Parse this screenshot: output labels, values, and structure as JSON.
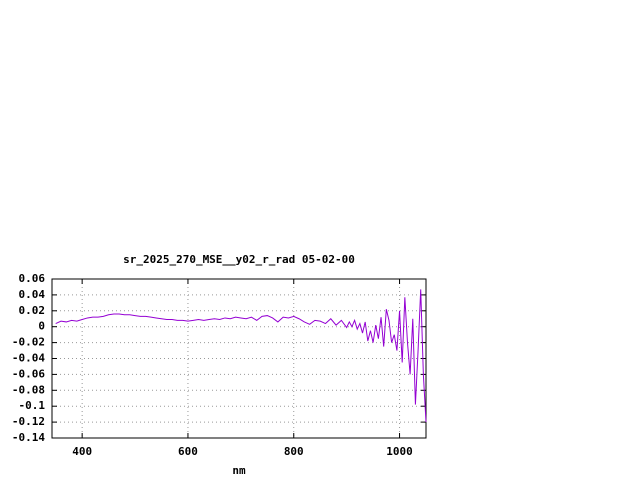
{
  "chart_data": {
    "type": "line",
    "title": "sr_2025_270_MSE__y02_r_rad 05-02-00",
    "x_label": "nm",
    "x": [
      350,
      360,
      370,
      380,
      390,
      400,
      410,
      420,
      430,
      440,
      450,
      460,
      470,
      480,
      490,
      500,
      510,
      520,
      530,
      540,
      550,
      560,
      570,
      580,
      590,
      600,
      610,
      620,
      630,
      640,
      650,
      660,
      670,
      680,
      690,
      700,
      710,
      720,
      730,
      740,
      750,
      760,
      770,
      780,
      790,
      800,
      810,
      820,
      830,
      840,
      850,
      860,
      870,
      880,
      890,
      900,
      905,
      910,
      915,
      920,
      925,
      930,
      935,
      940,
      945,
      950,
      955,
      960,
      965,
      970,
      975,
      980,
      985,
      990,
      995,
      1000,
      1005,
      1010,
      1015,
      1020,
      1025,
      1030,
      1035,
      1040,
      1045,
      1050
    ],
    "series": [
      {
        "color": "#9400d3",
        "values": [
          0.004,
          0.007,
          0.006,
          0.008,
          0.007,
          0.009,
          0.011,
          0.012,
          0.012,
          0.013,
          0.015,
          0.016,
          0.016,
          0.015,
          0.015,
          0.014,
          0.013,
          0.013,
          0.012,
          0.011,
          0.01,
          0.009,
          0.009,
          0.008,
          0.008,
          0.007,
          0.008,
          0.009,
          0.008,
          0.009,
          0.01,
          0.009,
          0.011,
          0.01,
          0.012,
          0.011,
          0.01,
          0.012,
          0.008,
          0.013,
          0.014,
          0.011,
          0.006,
          0.012,
          0.011,
          0.013,
          0.01,
          0.006,
          0.003,
          0.008,
          0.007,
          0.004,
          0.01,
          0.002,
          0.008,
          -0.001,
          0.006,
          0.0,
          0.008,
          -0.003,
          0.004,
          -0.008,
          0.006,
          -0.018,
          -0.005,
          -0.02,
          0.002,
          -0.015,
          0.012,
          -0.025,
          0.022,
          0.008,
          -0.02,
          -0.01,
          -0.03,
          0.02,
          -0.045,
          0.037,
          -0.02,
          -0.06,
          0.01,
          -0.098,
          -0.03,
          0.047,
          -0.06,
          -0.12
        ]
      }
    ],
    "xlim": [
      343,
      1050
    ],
    "ylim": [
      -0.14,
      0.06
    ],
    "xticks": [
      400,
      600,
      800,
      1000
    ],
    "yticks": [
      -0.14,
      -0.12,
      -0.1,
      -0.08,
      -0.06,
      -0.04,
      -0.02,
      0,
      0.02,
      0.04,
      0.06
    ],
    "grid": true
  }
}
